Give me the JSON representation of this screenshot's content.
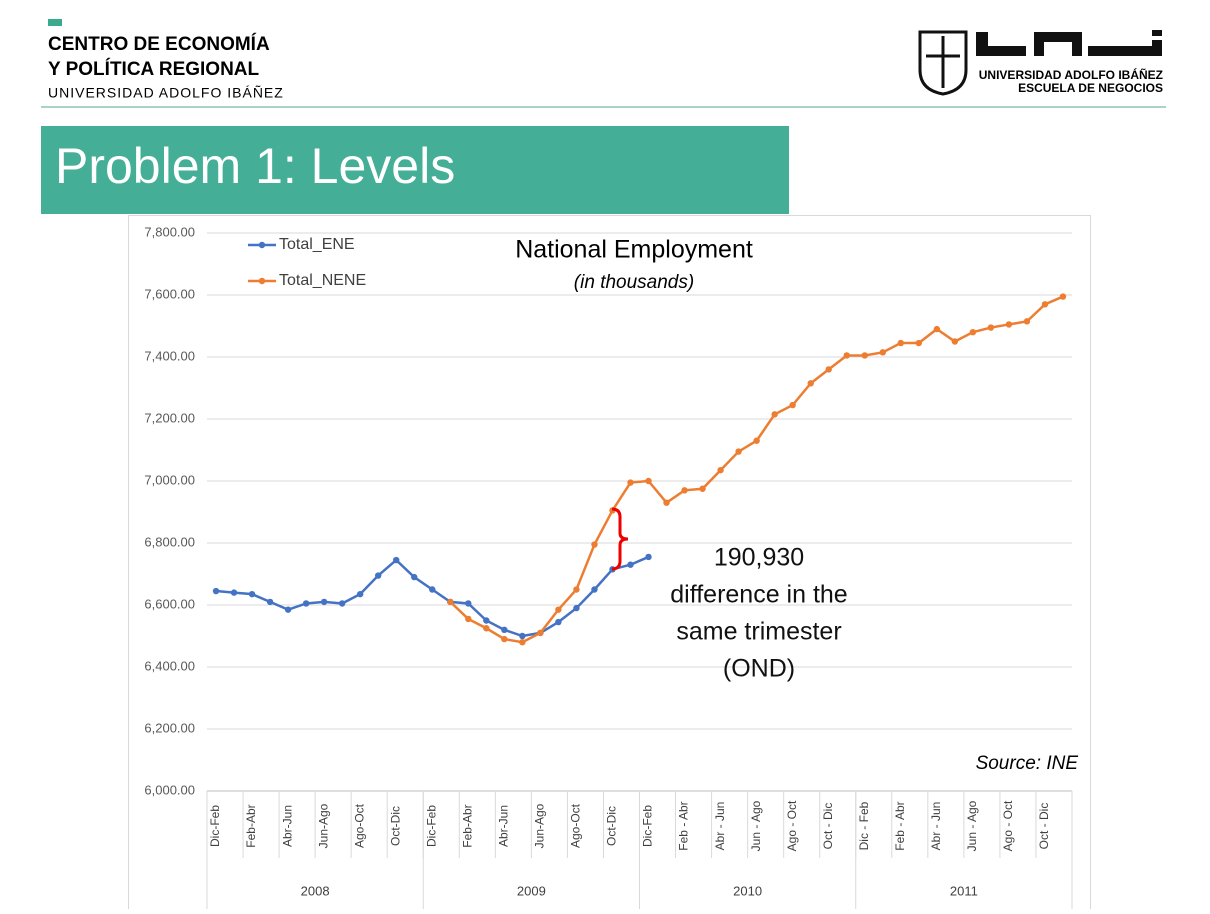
{
  "header": {
    "center_line1": "CENTRO DE ECONOMÍA",
    "center_line2": "Y POLÍTICA REGIONAL",
    "center_line3": "UNIVERSIDAD ADOLFO IBÁÑEZ",
    "logo_line1": "UNIVERSIDAD ADOLFO IBÁÑEZ",
    "logo_line2": "ESCUELA DE NEGOCIOS"
  },
  "slide_title": "Problem 1: Levels",
  "chart_data": {
    "type": "line",
    "title": "National Employment",
    "subtitle": "(in thousands)",
    "categories": [
      "Dic-Feb",
      null,
      "Feb-Abr",
      null,
      "Abr-Jun",
      null,
      "Jun-Ago",
      null,
      "Ago-Oct",
      null,
      "Oct-Dic",
      null,
      "Dic-Feb",
      null,
      "Feb-Abr",
      null,
      "Abr-Jun",
      null,
      "Jun-Ago",
      null,
      "Ago-Oct",
      null,
      "Oct-Dic",
      null,
      "Dic-Feb",
      null,
      "Feb - Abr",
      null,
      "Abr - Jun",
      null,
      "Jun - Ago",
      null,
      "Ago - Oct",
      null,
      "Oct - Dic",
      null,
      "Dic - Feb",
      null,
      "Feb - Abr",
      null,
      "Abr - Jun",
      null,
      "Jun - Ago",
      null,
      "Ago - Oct",
      null,
      "Oct - Dic",
      null
    ],
    "x_groups": [
      "2008",
      "2009",
      "2010",
      "2011"
    ],
    "series": [
      {
        "name": "Total_ENE",
        "color": "#4472c4",
        "values": [
          6645,
          6640,
          6635,
          6610,
          6585,
          6605,
          6610,
          6605,
          6635,
          6695,
          6745,
          6690,
          6650,
          6610,
          6605,
          6550,
          6520,
          6500,
          6510,
          6545,
          6590,
          6650,
          6715,
          6730,
          6755,
          null,
          null,
          null,
          null,
          null,
          null,
          null,
          null,
          null,
          null,
          null,
          null,
          null,
          null,
          null,
          null,
          null,
          null,
          null,
          null,
          null,
          null,
          null
        ]
      },
      {
        "name": "Total_NENE",
        "color": "#ed7d31",
        "values": [
          null,
          null,
          null,
          null,
          null,
          null,
          null,
          null,
          null,
          null,
          null,
          null,
          null,
          6610,
          6555,
          6525,
          6490,
          6480,
          6510,
          6585,
          6650,
          6795,
          6905,
          6995,
          7000,
          6930,
          6970,
          6975,
          7035,
          7095,
          7130,
          7215,
          7245,
          7315,
          7360,
          7405,
          7405,
          7415,
          7445,
          7445,
          7490,
          7450,
          7480,
          7495,
          7505,
          7515,
          7570,
          7595
        ]
      }
    ],
    "ylim": [
      6000,
      7800
    ],
    "yticks": [
      {
        "value": 6000,
        "label": "6,000.00"
      },
      {
        "value": 6200,
        "label": "6,200.00"
      },
      {
        "value": 6400,
        "label": "6,400.00"
      },
      {
        "value": 6600,
        "label": "6,600.00"
      },
      {
        "value": 6800,
        "label": "6,800.00"
      },
      {
        "value": 7000,
        "label": "7,000.00"
      },
      {
        "value": 7200,
        "label": "7,200.00"
      },
      {
        "value": 7400,
        "label": "7,400.00"
      },
      {
        "value": 7600,
        "label": "7,600.00"
      },
      {
        "value": 7800,
        "label": "7,800.00"
      }
    ],
    "grid": true,
    "legend": "upper left",
    "annotation": [
      "190,930",
      "difference in the",
      "same trimester",
      "(OND)"
    ],
    "source": "Source: INE"
  }
}
